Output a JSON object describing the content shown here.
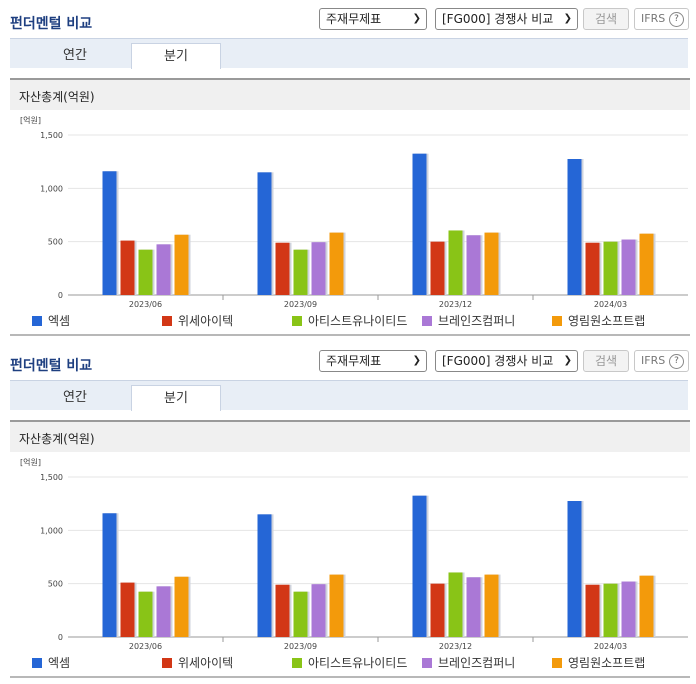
{
  "panel": {
    "title": "펀더멘털 비교",
    "select_statement": "주재무제표",
    "select_group": "[FG000] 경쟁사 비교",
    "search_label": "검색",
    "ifrs_label": "IFRS",
    "help_glyph": "?",
    "tabs": [
      {
        "label": "연간"
      },
      {
        "label": "분기"
      }
    ],
    "active_tab": "분기",
    "chart_heading": "자산총계(억원)"
  },
  "colors": {
    "series": [
      "#2566d6",
      "#d23716",
      "#89c417",
      "#aa78d6",
      "#f39a0b"
    ],
    "title": "#1e3f80"
  },
  "chart_data": {
    "type": "bar",
    "title": "자산총계(억원)",
    "ylabel": "[억원]",
    "ylim": [
      0,
      1500
    ],
    "yticks": [
      "0",
      "500",
      "1,000",
      "1,500"
    ],
    "categories": [
      "2023/06",
      "2023/09",
      "2023/12",
      "2024/03"
    ],
    "series": [
      {
        "name": "엑셈",
        "values": [
          1160,
          1150,
          1325,
          1275
        ]
      },
      {
        "name": "위세아이텍",
        "values": [
          510,
          490,
          500,
          490
        ]
      },
      {
        "name": "아티스트유나이티드",
        "values": [
          425,
          425,
          605,
          500
        ]
      },
      {
        "name": "브레인즈컴퍼니",
        "values": [
          475,
          495,
          560,
          520
        ]
      },
      {
        "name": "영림원소프트랩",
        "values": [
          565,
          585,
          585,
          575
        ]
      }
    ]
  }
}
